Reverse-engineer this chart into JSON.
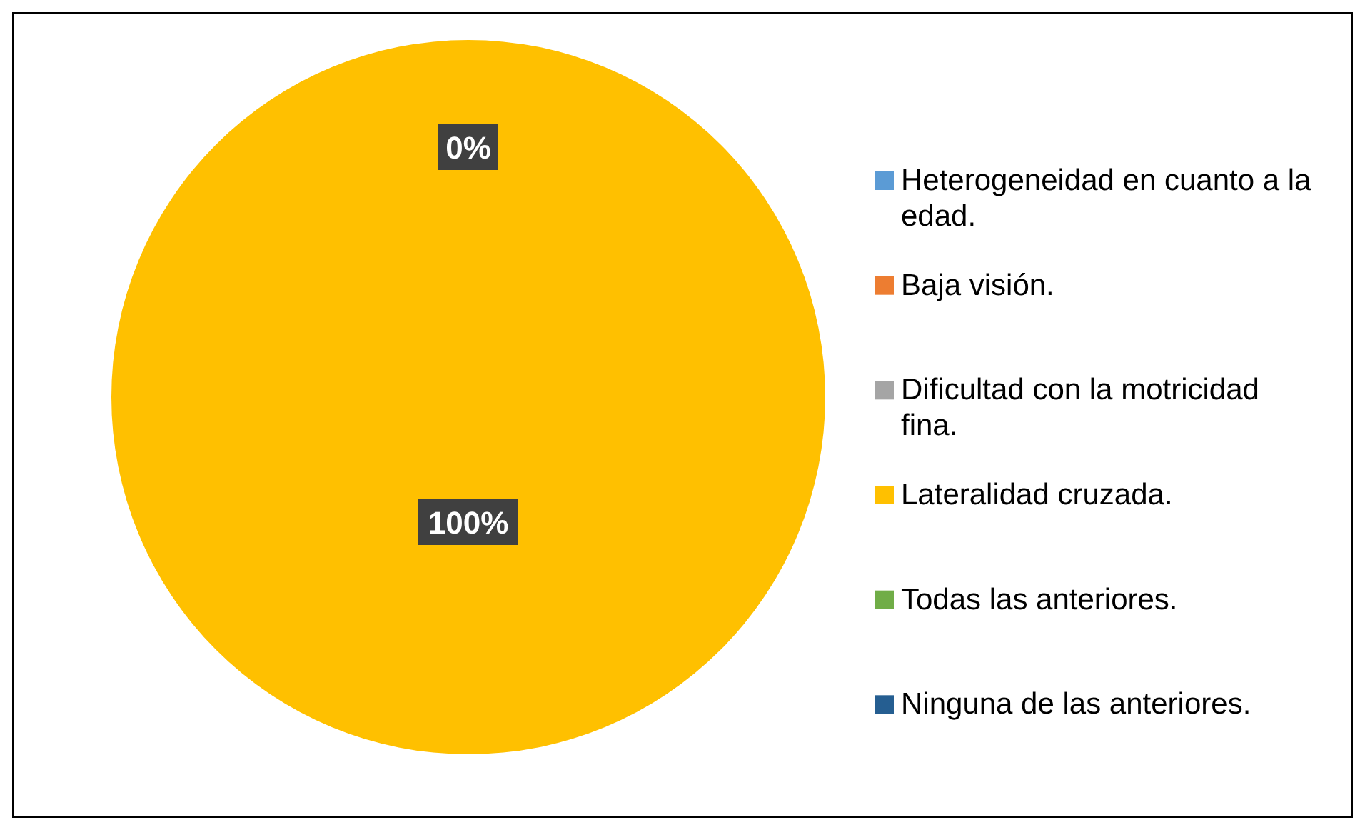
{
  "chart_data": {
    "type": "pie",
    "categories": [
      "Heterogeneidad en cuanto a la edad.",
      "Baja visión.",
      "Dificultad con la motricidad fina.",
      "Lateralidad cruzada.",
      "Todas las anteriores.",
      "Ninguna de las anteriores."
    ],
    "values": [
      0,
      0,
      0,
      100,
      0,
      0
    ],
    "colors": [
      "#5b9bd5",
      "#ed7d31",
      "#a5a5a5",
      "#ffc000",
      "#70ad47",
      "#255e91"
    ],
    "value_labels": [
      "0%",
      null,
      null,
      "100%",
      null,
      null
    ],
    "legend": "right"
  }
}
